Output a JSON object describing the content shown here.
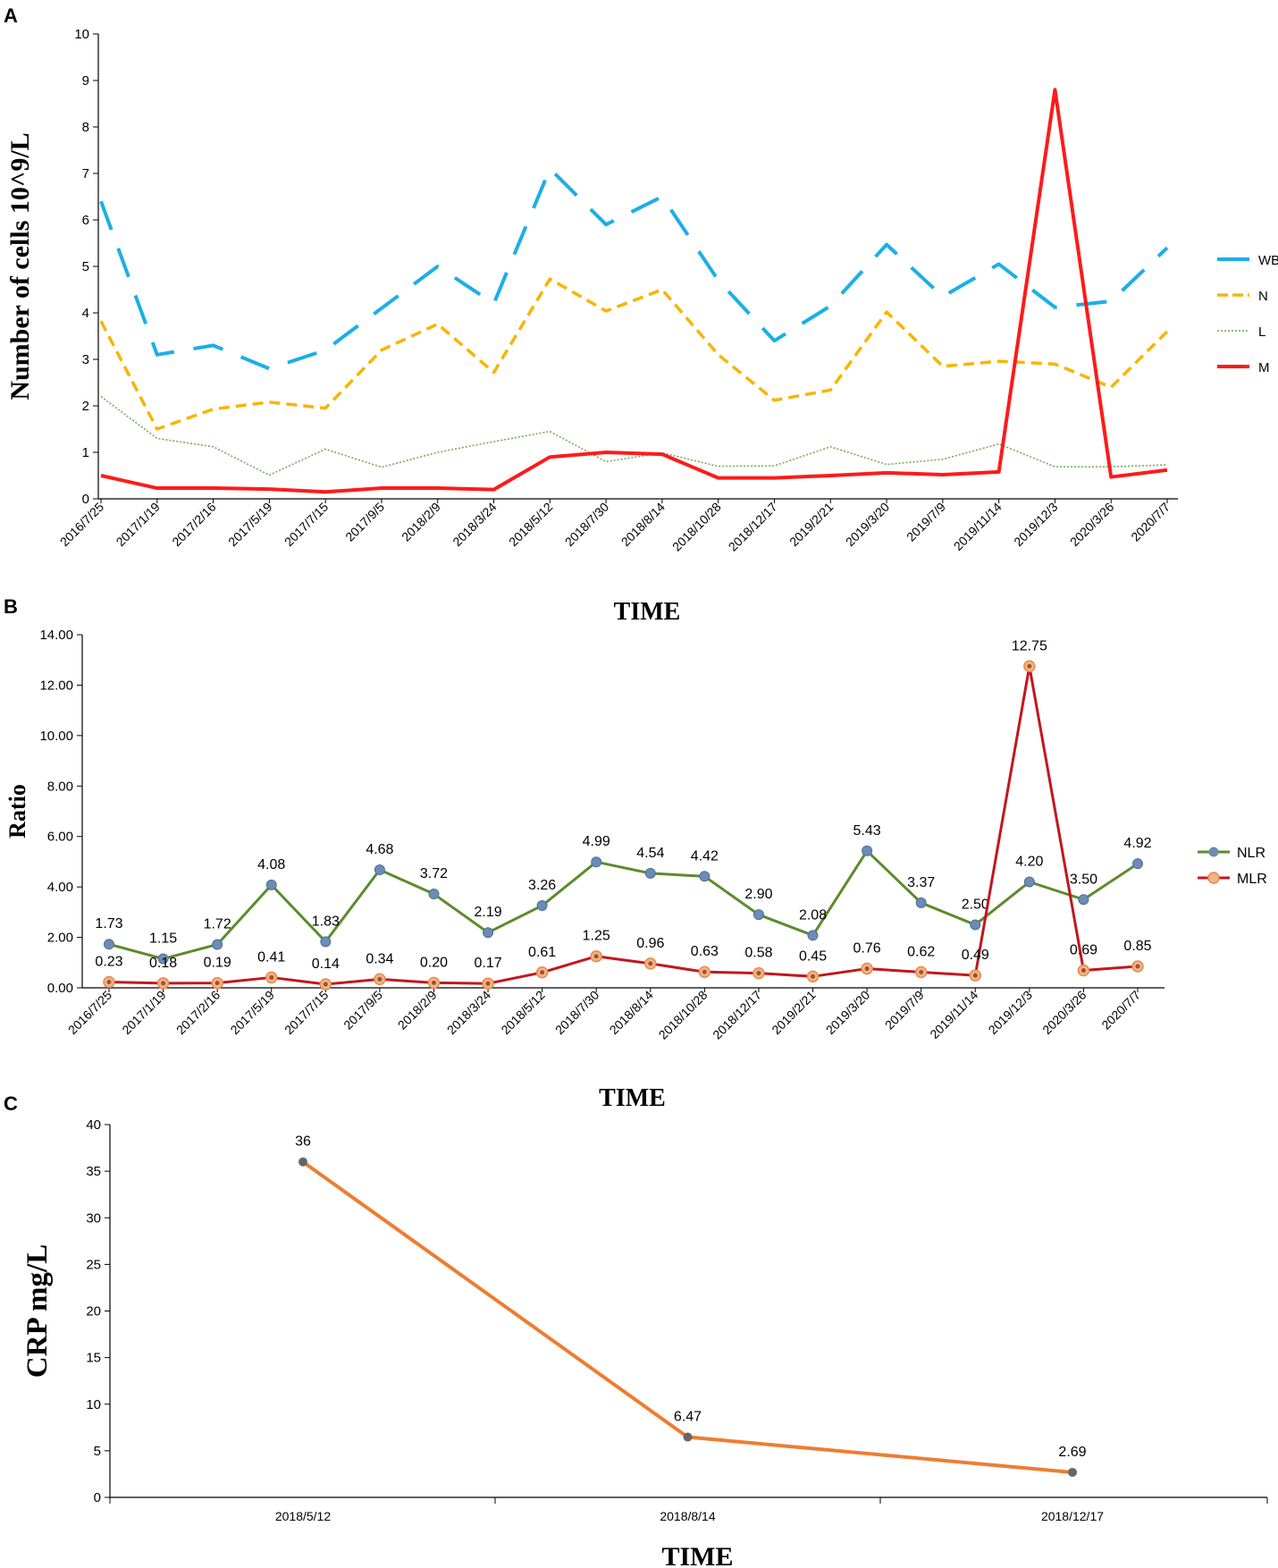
{
  "chart_data": [
    {
      "panel_label": "A",
      "type": "line",
      "title": "",
      "xlabel": "TIME",
      "ylabel": "Number of cells   10^9/L",
      "ylim": [
        0,
        10
      ],
      "yticks": [
        "0",
        "1",
        "2",
        "3",
        "4",
        "5",
        "6",
        "7",
        "8",
        "9",
        "10"
      ],
      "grid": false,
      "legend_position": "right",
      "categories": [
        "2016/7/25",
        "2017/1/19",
        "2017/2/16",
        "2017/5/19",
        "2017/7/15",
        "2017/9/5",
        "2018/2/9",
        "2018/3/24",
        "2018/5/12",
        "2018/7/30",
        "2018/8/14",
        "2018/10/28",
        "2018/12/17",
        "2019/2/21",
        "2019/3/20",
        "2019/7/9",
        "2019/11/14",
        "2019/12/3",
        "2020/3/26",
        "2020/7/7"
      ],
      "series": [
        {
          "name": "WBC",
          "color": "#1bafe6",
          "style": "long-dash",
          "values": [
            6.4,
            3.1,
            3.3,
            2.8,
            3.2,
            4.1,
            5.0,
            4.2,
            7.1,
            5.9,
            6.5,
            4.7,
            3.4,
            4.15,
            5.47,
            4.35,
            5.05,
            4.12,
            4.25,
            5.4
          ]
        },
        {
          "name": "N",
          "color": "#f7b500",
          "style": "dash",
          "values": [
            3.82,
            1.5,
            1.93,
            2.08,
            1.95,
            3.2,
            3.76,
            2.72,
            4.73,
            4.04,
            4.5,
            3.1,
            2.12,
            2.34,
            4.02,
            2.85,
            2.96,
            2.9,
            2.4,
            3.6
          ]
        },
        {
          "name": "L",
          "color": "#6aa84f",
          "style": "dotted",
          "values": [
            2.2,
            1.3,
            1.12,
            0.51,
            1.07,
            0.68,
            1.0,
            1.23,
            1.45,
            0.8,
            0.99,
            0.7,
            0.71,
            1.12,
            0.74,
            0.85,
            1.18,
            0.69,
            0.69,
            0.73
          ]
        },
        {
          "name": "M",
          "color": "#ff1a1a",
          "style": "solid",
          "values": [
            0.5,
            0.23,
            0.23,
            0.21,
            0.15,
            0.23,
            0.23,
            0.2,
            0.9,
            1.0,
            0.96,
            0.45,
            0.45,
            0.5,
            0.56,
            0.52,
            0.58,
            8.8,
            0.47,
            0.62
          ]
        }
      ]
    },
    {
      "panel_label": "B",
      "type": "line",
      "title": "",
      "xlabel": "TIME",
      "ylabel": "Ratio",
      "ylim": [
        0,
        14
      ],
      "yticks": [
        "0.00",
        "2.00",
        "4.00",
        "6.00",
        "8.00",
        "10.00",
        "12.00",
        "14.00"
      ],
      "grid": false,
      "legend_position": "right",
      "categories": [
        "2016/7/25",
        "2017/1/19",
        "2017/2/16",
        "2017/5/19",
        "2017/7/15",
        "2017/9/5",
        "2018/2/9",
        "2018/3/24",
        "2018/5/12",
        "2018/7/30",
        "2018/8/14",
        "2018/10/28",
        "2018/12/17",
        "2019/2/21",
        "2019/3/20",
        "2019/7/9",
        "2019/11/14",
        "2019/12/3",
        "2020/3/26",
        "2020/7/7"
      ],
      "series": [
        {
          "name": "NLR",
          "color": "#5b8c2a",
          "marker_color": "#6b8cb5",
          "values": [
            1.73,
            1.15,
            1.72,
            4.08,
            1.83,
            4.68,
            3.72,
            2.19,
            3.26,
            4.99,
            4.54,
            4.42,
            2.9,
            2.08,
            5.43,
            3.37,
            2.5,
            4.2,
            3.5,
            4.92
          ],
          "labels": [
            "1.73",
            "1.15",
            "1.72",
            "4.08",
            "1.83",
            "4.68",
            "3.72",
            "2.19",
            "3.26",
            "4.99",
            "4.54",
            "4.42",
            "2.90",
            "2.08",
            "5.43",
            "3.37",
            "2.50",
            "4.20",
            "3.50",
            "4.92"
          ]
        },
        {
          "name": "MLR",
          "color": "#c0181e",
          "marker_color": "#f0a070",
          "values": [
            0.23,
            0.18,
            0.19,
            0.41,
            0.14,
            0.34,
            0.2,
            0.17,
            0.61,
            1.25,
            0.96,
            0.63,
            0.58,
            0.45,
            0.76,
            0.62,
            0.49,
            12.75,
            0.69,
            0.85
          ],
          "labels": [
            "0.23",
            "0.18",
            "0.19",
            "0.41",
            "0.14",
            "0.34",
            "0.20",
            "0.17",
            "0.61",
            "1.25",
            "0.96",
            "0.63",
            "0.58",
            "0.45",
            "0.76",
            "0.62",
            "0.49",
            "12.75",
            "0.69",
            "0.85"
          ]
        }
      ]
    },
    {
      "panel_label": "C",
      "type": "line",
      "title": "",
      "xlabel": "TIME",
      "ylabel": "CRP   mg/L",
      "ylim": [
        0,
        40
      ],
      "yticks": [
        "0",
        "5",
        "10",
        "15",
        "20",
        "25",
        "30",
        "35",
        "40"
      ],
      "grid": false,
      "categories": [
        "2018/5/12",
        "2018/8/14",
        "2018/12/17"
      ],
      "series": [
        {
          "name": "CRP",
          "color": "#ed7d31",
          "marker_color": "#666666",
          "values": [
            36,
            6.47,
            2.69
          ],
          "labels": [
            "36",
            "6.47",
            "2.69"
          ]
        }
      ]
    }
  ]
}
